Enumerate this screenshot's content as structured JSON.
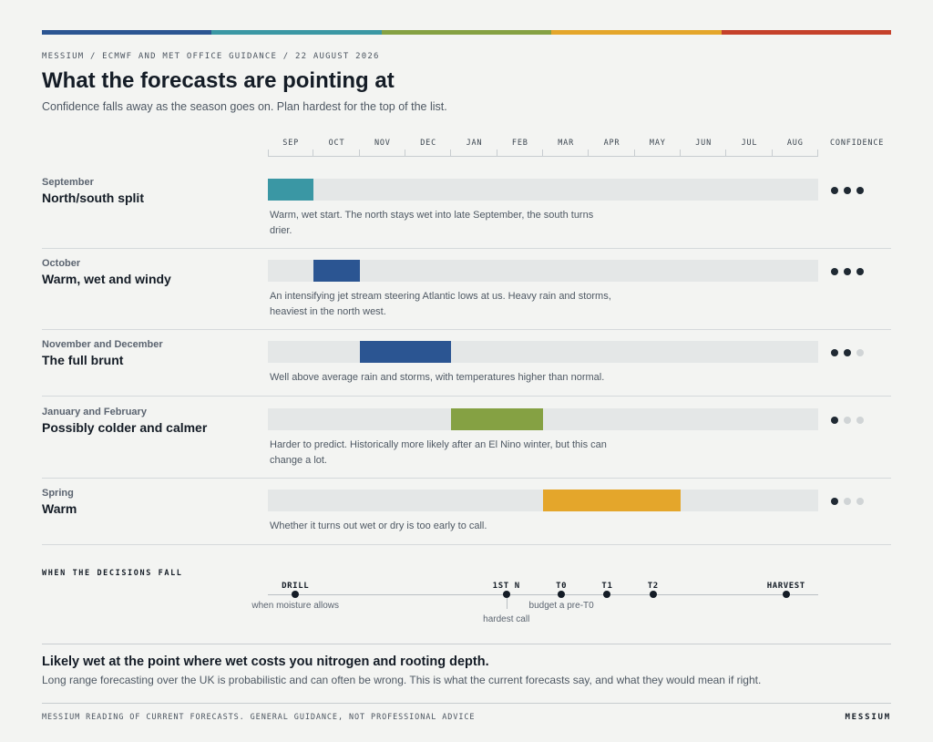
{
  "header": {
    "kicker": "MESSIUM / ECMWF AND MET OFFICE GUIDANCE / 22 AUGUST 2026",
    "title": "What the forecasts are pointing at",
    "subtitle": "Confidence falls away as the season goes on. Plan hardest for the top of the list.",
    "topbar_colors": [
      "#2b5592",
      "#3a97a4",
      "#85a143",
      "#e4a62b",
      "#c5412b"
    ]
  },
  "chart_data": {
    "type": "bar",
    "months": [
      "SEP",
      "OCT",
      "NOV",
      "DEC",
      "JAN",
      "FEB",
      "MAR",
      "APR",
      "MAY",
      "JUN",
      "JUL",
      "AUG"
    ],
    "confidence_label": "CONFIDENCE",
    "confidence_max": 3,
    "rows": [
      {
        "period": "September",
        "name": "North/south split",
        "start_month": "SEP",
        "end_month": "SEP",
        "color": "#3a97a4",
        "confidence": 3,
        "description": "Warm, wet start. The north stays wet into late September, the south turns drier."
      },
      {
        "period": "October",
        "name": "Warm, wet and windy",
        "start_month": "OCT",
        "end_month": "OCT",
        "color": "#2b5592",
        "confidence": 3,
        "description": "An intensifying jet stream steering Atlantic lows at us. Heavy rain and storms, heaviest in the north west."
      },
      {
        "period": "November and December",
        "name": "The full brunt",
        "start_month": "NOV",
        "end_month": "DEC",
        "color": "#2b5592",
        "confidence": 2,
        "description": "Well above average rain and storms, with temperatures higher than normal."
      },
      {
        "period": "January and February",
        "name": "Possibly colder and calmer",
        "start_month": "JAN",
        "end_month": "FEB",
        "color": "#85a143",
        "confidence": 1,
        "description": "Harder to predict. Historically more likely after an El Nino winter, but this can change a lot."
      },
      {
        "period": "Spring",
        "name": "Warm",
        "start_month": "MAR",
        "end_month": "MAY",
        "color": "#e4a62b",
        "confidence": 1,
        "description": "Whether it turns out wet or dry is too early to call."
      }
    ],
    "decisions": {
      "heading": "WHEN THE DECISIONS FALL",
      "events": [
        {
          "label": "DRILL",
          "month_position": 0.6,
          "note": "when moisture allows"
        },
        {
          "label": "1ST N",
          "month_position": 5.2,
          "note": "hardest call",
          "stem": true
        },
        {
          "label": "T0",
          "month_position": 6.4,
          "note": "budget a pre-T0"
        },
        {
          "label": "T1",
          "month_position": 7.4
        },
        {
          "label": "T2",
          "month_position": 8.4
        },
        {
          "label": "HARVEST",
          "month_position": 11.3
        }
      ]
    }
  },
  "takeaway": {
    "title": "Likely wet at the point where wet costs you nitrogen and rooting depth.",
    "subtitle": "Long range forecasting over the UK is probabilistic and can often be wrong. This is what the current forecasts say, and what they would mean if right."
  },
  "footer": {
    "note": "MESSIUM READING OF CURRENT FORECASTS. GENERAL GUIDANCE, NOT PROFESSIONAL ADVICE",
    "brand": "MESSIUM"
  }
}
